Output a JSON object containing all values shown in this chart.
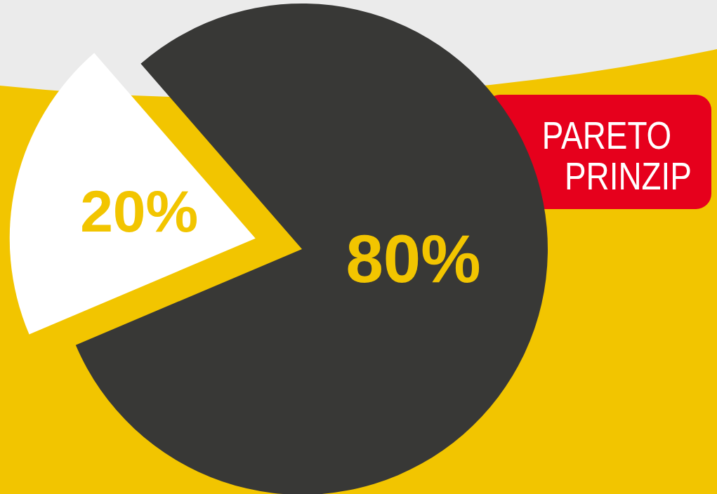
{
  "chart_data": {
    "type": "pie",
    "title": "PARETO PRINZIP",
    "categories": [
      null,
      null
    ],
    "values": [
      80,
      20
    ],
    "colors": [
      "#383836",
      "#ffffff"
    ],
    "value_labels": [
      "80%",
      "20%"
    ]
  }
}
